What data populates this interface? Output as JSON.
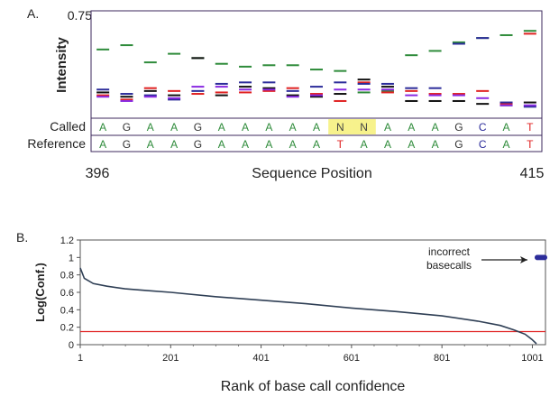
{
  "chart_data": [
    {
      "panel_label": "A.",
      "type": "line",
      "ylabel": "Intensity",
      "ymax_label": "0.75",
      "ylim": [
        0,
        0.75
      ],
      "xlabel": "Sequence Position",
      "x_start_label": "396",
      "x_end_label": "415",
      "row_labels": {
        "called": "Called",
        "reference": "Reference"
      },
      "called": [
        "A",
        "G",
        "A",
        "A",
        "G",
        "A",
        "A",
        "A",
        "A",
        "A",
        "N",
        "N",
        "A",
        "A",
        "A",
        "G",
        "C",
        "A",
        "T"
      ],
      "reference": [
        "A",
        "G",
        "A",
        "A",
        "G",
        "A",
        "A",
        "A",
        "A",
        "A",
        "T",
        "A",
        "A",
        "A",
        "A",
        "G",
        "C",
        "A",
        "T"
      ],
      "highlight_positions": [
        10,
        11
      ],
      "series": [
        {
          "color": "#2e8b3a",
          "values": [
            0.48,
            0.51,
            0.39,
            0.45,
            0.42,
            0.38,
            0.36,
            0.37,
            0.37,
            0.34,
            0.33,
            0.18,
            0.19,
            0.44,
            0.47,
            0.53,
            0.56,
            0.58,
            0.61
          ]
        },
        {
          "color": "#111111",
          "values": [
            0.18,
            0.15,
            0.19,
            0.16,
            0.42,
            0.16,
            0.22,
            0.21,
            0.16,
            0.15,
            0.17,
            0.27,
            0.22,
            0.12,
            0.12,
            0.12,
            0.1,
            0.09,
            0.11
          ]
        },
        {
          "color": "#e02222",
          "values": [
            0.16,
            0.13,
            0.21,
            0.19,
            0.17,
            0.18,
            0.18,
            0.19,
            0.21,
            0.17,
            0.12,
            0.25,
            0.18,
            0.19,
            0.17,
            0.17,
            0.19,
            0.1,
            0.59
          ]
        },
        {
          "color": "#2c2c9a",
          "values": [
            0.2,
            0.17,
            0.16,
            0.13,
            0.19,
            0.24,
            0.25,
            0.25,
            0.19,
            0.22,
            0.25,
            0.24,
            0.24,
            0.21,
            0.21,
            0.52,
            0.56,
            0.11,
            0.08
          ]
        },
        {
          "color": "#8a2be2",
          "values": [
            0.15,
            0.12,
            0.15,
            0.14,
            0.22,
            0.22,
            0.2,
            0.2,
            0.15,
            0.16,
            0.2,
            0.2,
            0.2,
            0.16,
            0.16,
            0.16,
            0.14,
            0.09,
            0.09
          ]
        }
      ],
      "base_colors": {
        "A": "#2e8b3a",
        "G": "#333333",
        "C": "#2c2c9a",
        "T": "#e02222",
        "N": "#444444"
      }
    },
    {
      "panel_label": "B.",
      "type": "line",
      "ylabel": "Log(Conf.)",
      "xlabel": "Rank of base call confidence",
      "ylim": [
        0,
        1.2
      ],
      "xlim": [
        1,
        1030
      ],
      "yticks": [
        "0",
        "0.2",
        "0.4",
        "0.6",
        "0.8",
        "1",
        "1.2"
      ],
      "xticks": [
        "1",
        "201",
        "401",
        "601",
        "801",
        "1001"
      ],
      "series": [
        {
          "color": "#2f3f55",
          "x": [
            1,
            10,
            30,
            60,
            100,
            150,
            201,
            300,
            401,
            500,
            601,
            700,
            801,
            880,
            930,
            960,
            985,
            1000,
            1010
          ],
          "y": [
            0.88,
            0.76,
            0.7,
            0.67,
            0.64,
            0.62,
            0.6,
            0.55,
            0.51,
            0.47,
            0.42,
            0.38,
            0.33,
            0.27,
            0.22,
            0.17,
            0.12,
            0.06,
            0.01
          ]
        }
      ],
      "threshold": {
        "value": 0.15,
        "color": "#e02222"
      },
      "annotation": {
        "line1": "incorrect",
        "line2": "basecalls"
      },
      "incorrect_points": {
        "x": [
          1012,
          1016,
          1020,
          1024,
          1028
        ],
        "y": [
          1,
          1,
          1,
          1,
          1
        ],
        "color": "#2c2c9a"
      }
    }
  ]
}
